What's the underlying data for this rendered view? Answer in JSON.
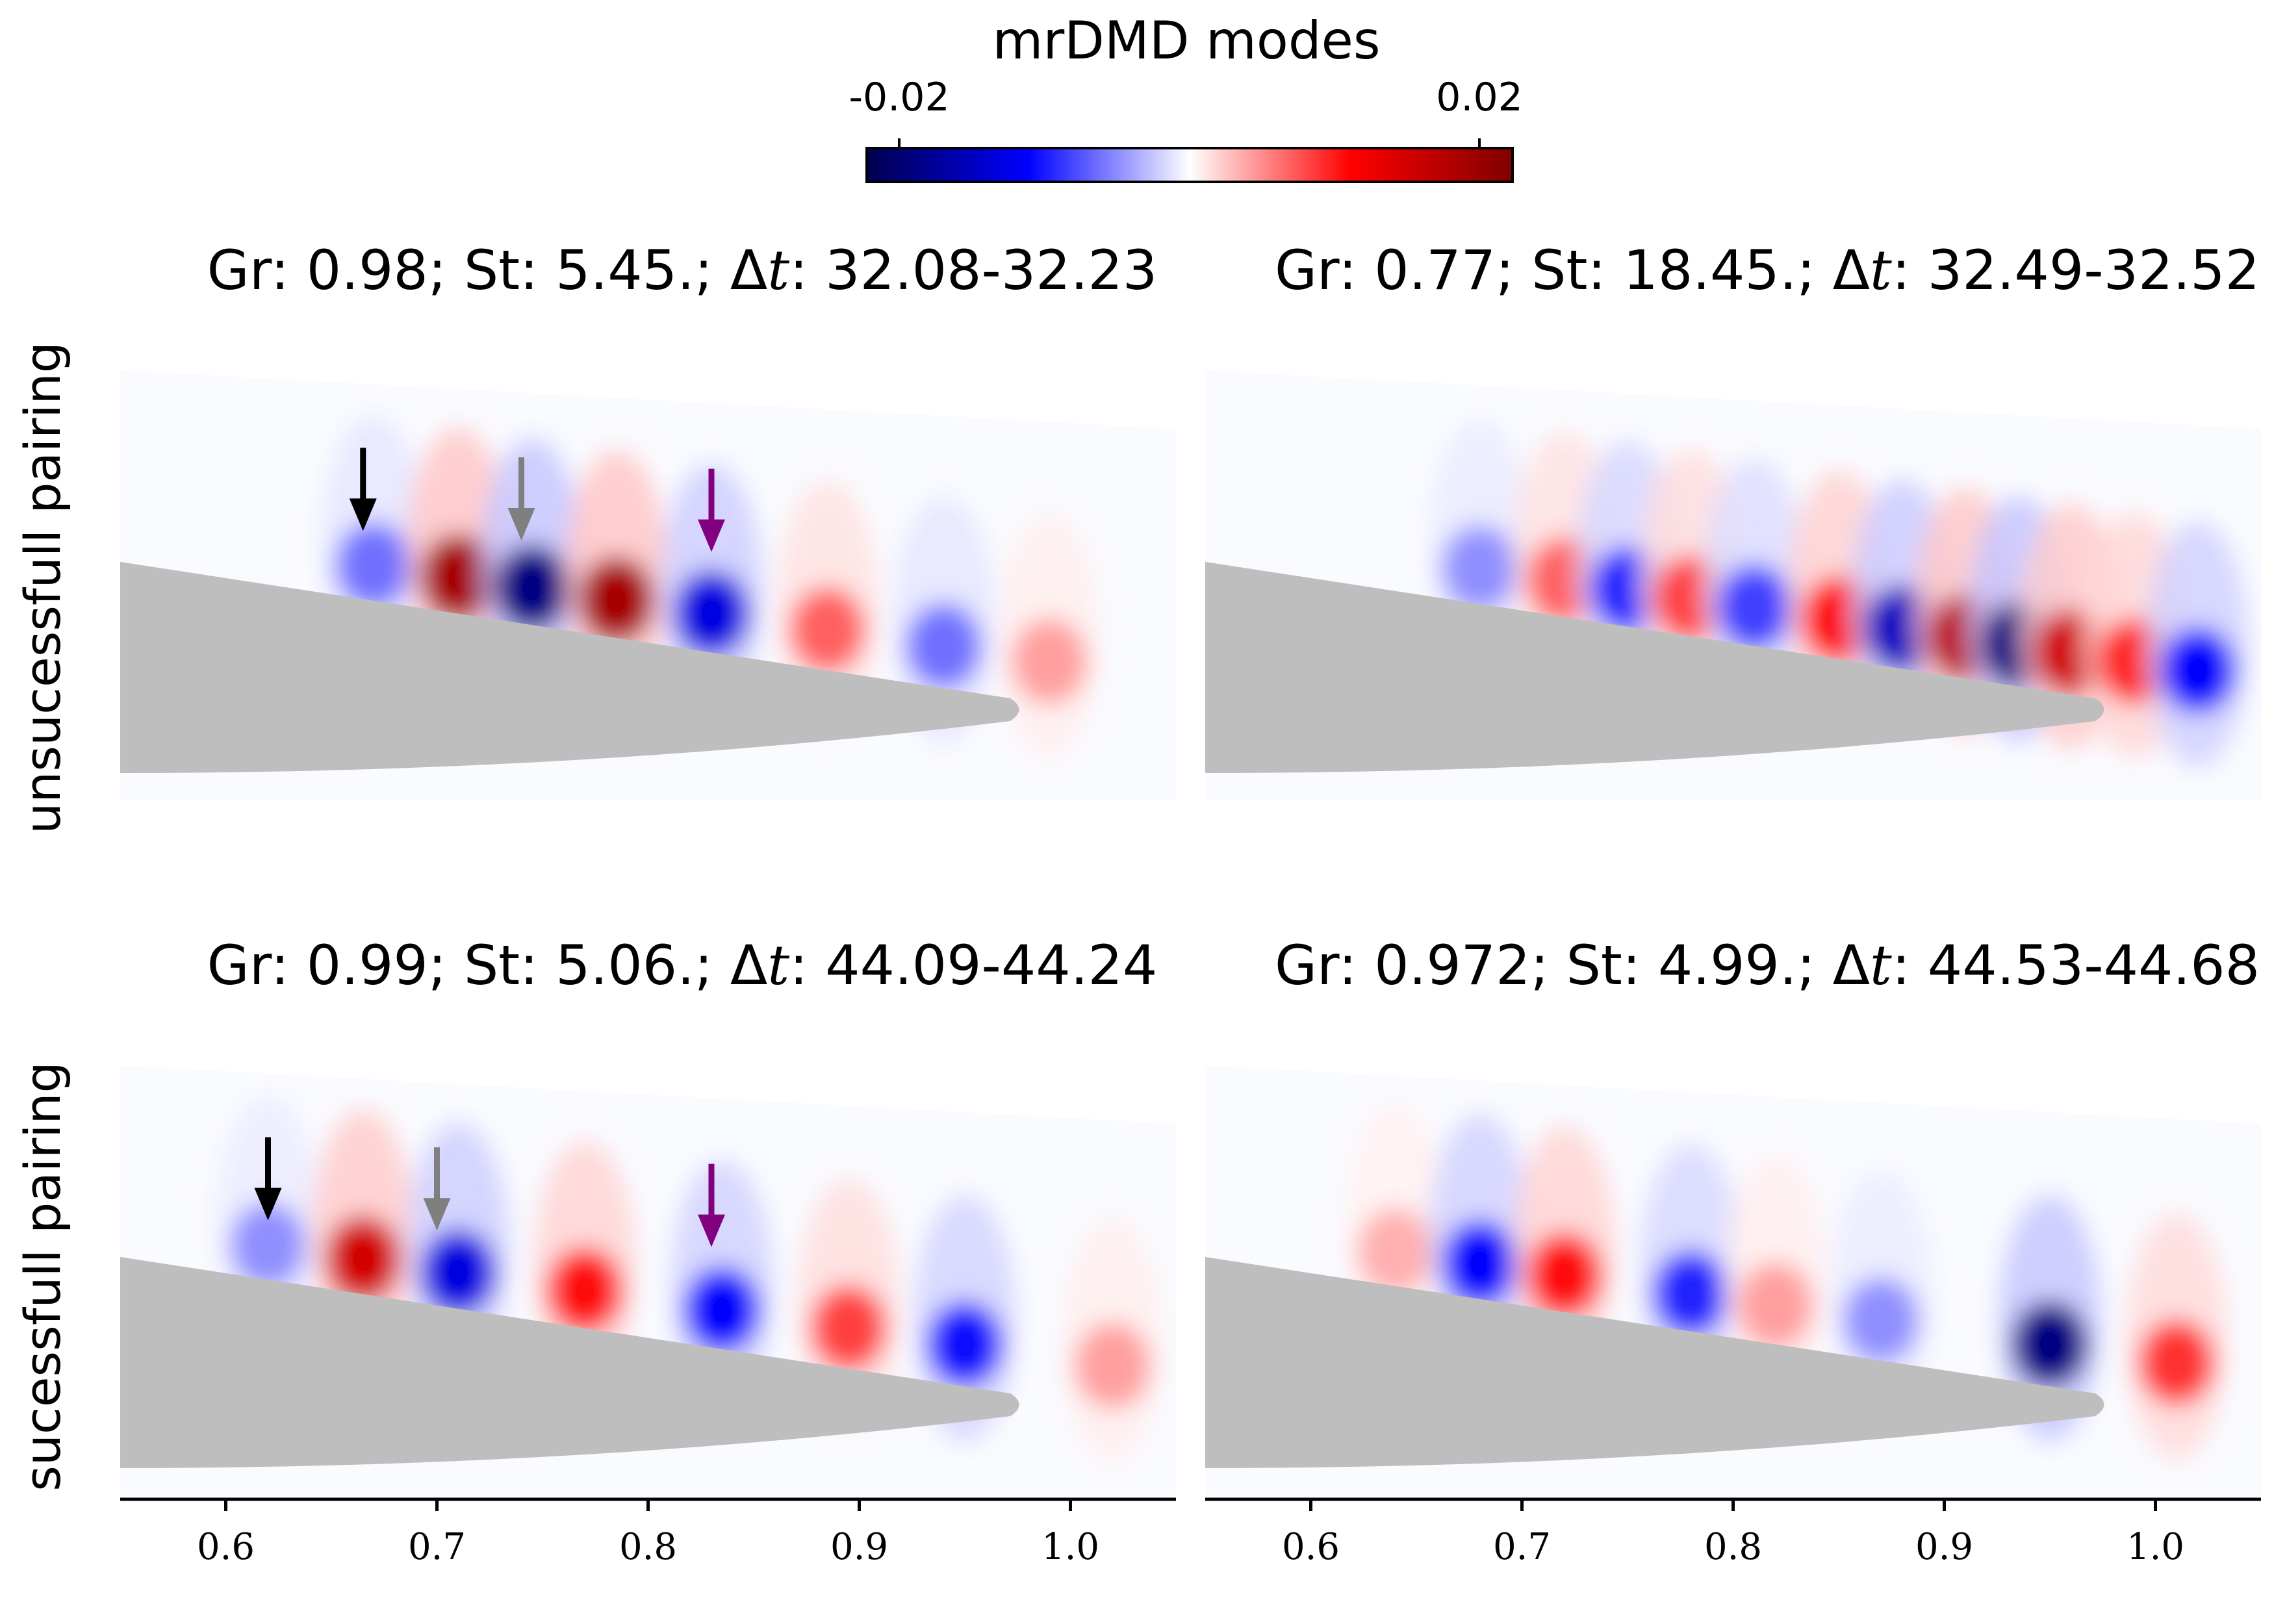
{
  "chart_data": {
    "type": "heatmap",
    "colorbar": {
      "title": "mrDMD modes",
      "min": -0.02,
      "max": 0.02,
      "tick_labels": [
        "-0.02",
        "0.02"
      ],
      "colormap": "seismic",
      "colors": {
        "neg_dark": "#00004d",
        "neg": "#0000ff",
        "zero": "#ffffff",
        "pos": "#ff0000",
        "pos_dark": "#800000"
      }
    },
    "row_labels": [
      "unsucessfull pairing",
      "sucessfull pairing"
    ],
    "x_axis": {
      "range": [
        0.55,
        1.05
      ],
      "ticks": [
        0.6,
        0.7,
        0.8,
        0.9,
        1.0
      ],
      "tick_labels": [
        "0.6",
        "0.7",
        "0.8",
        "0.9",
        "1.0"
      ]
    },
    "panels": [
      {
        "id": "top-left",
        "title": {
          "pre": "Gr:  0.98; St:  5.45.; ",
          "dt_sym": "Δ",
          "t_sym": "t",
          "post": ":  32.08-32.23"
        },
        "gr": 0.98,
        "st": 5.45,
        "dt_range": [
          32.08,
          32.23
        ],
        "blobs": [
          {
            "x": 0.67,
            "s": -0.45
          },
          {
            "x": 0.71,
            "s": 1.0
          },
          {
            "x": 0.745,
            "s": -1.0
          },
          {
            "x": 0.785,
            "s": 1.0
          },
          {
            "x": 0.83,
            "s": -0.85
          },
          {
            "x": 0.885,
            "s": 0.5
          },
          {
            "x": 0.94,
            "s": -0.45
          },
          {
            "x": 0.99,
            "s": 0.3
          }
        ],
        "arrows": [
          {
            "x": 0.665,
            "color": "#000000"
          },
          {
            "x": 0.74,
            "color": "#7f7f7f"
          },
          {
            "x": 0.83,
            "color": "#800080"
          }
        ]
      },
      {
        "id": "top-right",
        "title": {
          "pre": "Gr:  0.77; St:  18.45.; ",
          "dt_sym": "Δ",
          "t_sym": "t",
          "post": ":  32.49-32.52"
        },
        "gr": 0.77,
        "st": 18.45,
        "dt_range": [
          32.49,
          32.52
        ],
        "blobs": [
          {
            "x": 0.68,
            "s": -0.35
          },
          {
            "x": 0.72,
            "s": 0.5
          },
          {
            "x": 0.75,
            "s": -0.7
          },
          {
            "x": 0.78,
            "s": 0.6
          },
          {
            "x": 0.81,
            "s": -0.6
          },
          {
            "x": 0.85,
            "s": 0.8
          },
          {
            "x": 0.88,
            "s": -0.9
          },
          {
            "x": 0.91,
            "s": 0.95
          },
          {
            "x": 0.935,
            "s": -1.0
          },
          {
            "x": 0.96,
            "s": 0.9
          },
          {
            "x": 0.99,
            "s": 0.7
          },
          {
            "x": 1.02,
            "s": -0.8
          }
        ],
        "arrows": []
      },
      {
        "id": "bottom-left",
        "title": {
          "pre": "Gr:  0.99; St:  5.06.; ",
          "dt_sym": "Δ",
          "t_sym": "t",
          "post": ":  44.09-44.24"
        },
        "gr": 0.99,
        "st": 5.06,
        "dt_range": [
          44.09,
          44.24
        ],
        "blobs": [
          {
            "x": 0.62,
            "s": -0.35
          },
          {
            "x": 0.665,
            "s": 0.9
          },
          {
            "x": 0.71,
            "s": -0.85
          },
          {
            "x": 0.77,
            "s": 0.75
          },
          {
            "x": 0.835,
            "s": -0.8
          },
          {
            "x": 0.895,
            "s": 0.6
          },
          {
            "x": 0.95,
            "s": -0.75
          },
          {
            "x": 1.02,
            "s": 0.3
          }
        ],
        "arrows": [
          {
            "x": 0.62,
            "color": "#000000"
          },
          {
            "x": 0.7,
            "color": "#7f7f7f"
          },
          {
            "x": 0.83,
            "color": "#800080"
          }
        ]
      },
      {
        "id": "bottom-right",
        "title": {
          "pre": "Gr:  0.972; St:  4.99.; ",
          "dt_sym": "Δ",
          "t_sym": "t",
          "post": ":  44.53-44.68"
        },
        "gr": 0.972,
        "st": 4.99,
        "dt_range": [
          44.53,
          44.68
        ],
        "blobs": [
          {
            "x": 0.64,
            "s": 0.25
          },
          {
            "x": 0.68,
            "s": -0.8
          },
          {
            "x": 0.72,
            "s": 0.75
          },
          {
            "x": 0.78,
            "s": -0.7
          },
          {
            "x": 0.82,
            "s": 0.3
          },
          {
            "x": 0.87,
            "s": -0.35
          },
          {
            "x": 0.95,
            "s": -1.0
          },
          {
            "x": 1.01,
            "s": 0.65
          }
        ],
        "arrows": []
      }
    ]
  }
}
